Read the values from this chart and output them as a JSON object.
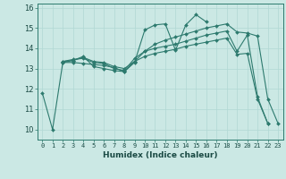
{
  "title": "",
  "xlabel": "Humidex (Indice chaleur)",
  "background_color": "#cbe8e4",
  "grid_color": "#b0d8d4",
  "line_color": "#2d7a6e",
  "xlim": [
    -0.5,
    23.5
  ],
  "ylim": [
    9.5,
    16.2
  ],
  "ytick_values": [
    10,
    11,
    12,
    13,
    14,
    15,
    16
  ],
  "series": [
    {
      "comment": "spiky line: 0->11.8, 1->10.0, 2->13.3, 3->13.4, 4->13.6, 5->13.1, 6->13.0, 7->12.9, 8->12.85, 9->13.3, 10->14.9, 11->15.15, 12->15.2, 13->13.9, 14->15.15, 15->15.65, 16->15.3",
      "x": [
        0,
        1,
        2,
        3,
        4,
        5,
        6,
        7,
        8,
        9,
        10,
        11,
        12,
        13,
        14,
        15,
        16
      ],
      "y": [
        11.8,
        10.0,
        13.3,
        13.4,
        13.6,
        13.1,
        13.0,
        12.9,
        12.85,
        13.3,
        14.9,
        15.15,
        15.2,
        13.9,
        15.15,
        15.65,
        15.3
      ]
    },
    {
      "x": [
        2,
        3,
        4,
        5,
        6,
        7,
        8,
        9,
        10,
        11,
        12,
        13,
        14,
        15,
        16,
        17,
        18,
        19,
        20,
        21,
        22
      ],
      "y": [
        13.35,
        13.45,
        13.5,
        13.3,
        13.25,
        13.0,
        12.9,
        13.5,
        13.85,
        14.0,
        14.1,
        14.2,
        14.35,
        14.5,
        14.65,
        14.75,
        14.85,
        13.85,
        14.65,
        11.6,
        10.3
      ]
    },
    {
      "x": [
        2,
        3,
        4,
        5,
        6,
        7,
        8,
        9,
        10,
        11,
        12,
        13,
        14,
        15,
        16,
        17,
        18,
        19,
        20,
        21,
        22
      ],
      "y": [
        13.35,
        13.4,
        13.55,
        13.35,
        13.3,
        13.1,
        13.0,
        13.35,
        13.6,
        13.75,
        13.85,
        13.95,
        14.1,
        14.2,
        14.3,
        14.4,
        14.5,
        13.7,
        13.75,
        11.5,
        10.3
      ]
    },
    {
      "x": [
        2,
        3,
        4,
        5,
        6,
        7,
        8,
        9,
        10,
        11,
        12,
        13,
        14,
        15,
        16,
        17,
        18,
        19,
        20,
        21,
        22,
        23
      ],
      "y": [
        13.3,
        13.3,
        13.25,
        13.2,
        13.15,
        13.05,
        12.85,
        13.35,
        13.85,
        14.2,
        14.4,
        14.55,
        14.7,
        14.85,
        15.0,
        15.1,
        15.2,
        14.8,
        14.75,
        14.6,
        11.5,
        10.3
      ]
    }
  ]
}
